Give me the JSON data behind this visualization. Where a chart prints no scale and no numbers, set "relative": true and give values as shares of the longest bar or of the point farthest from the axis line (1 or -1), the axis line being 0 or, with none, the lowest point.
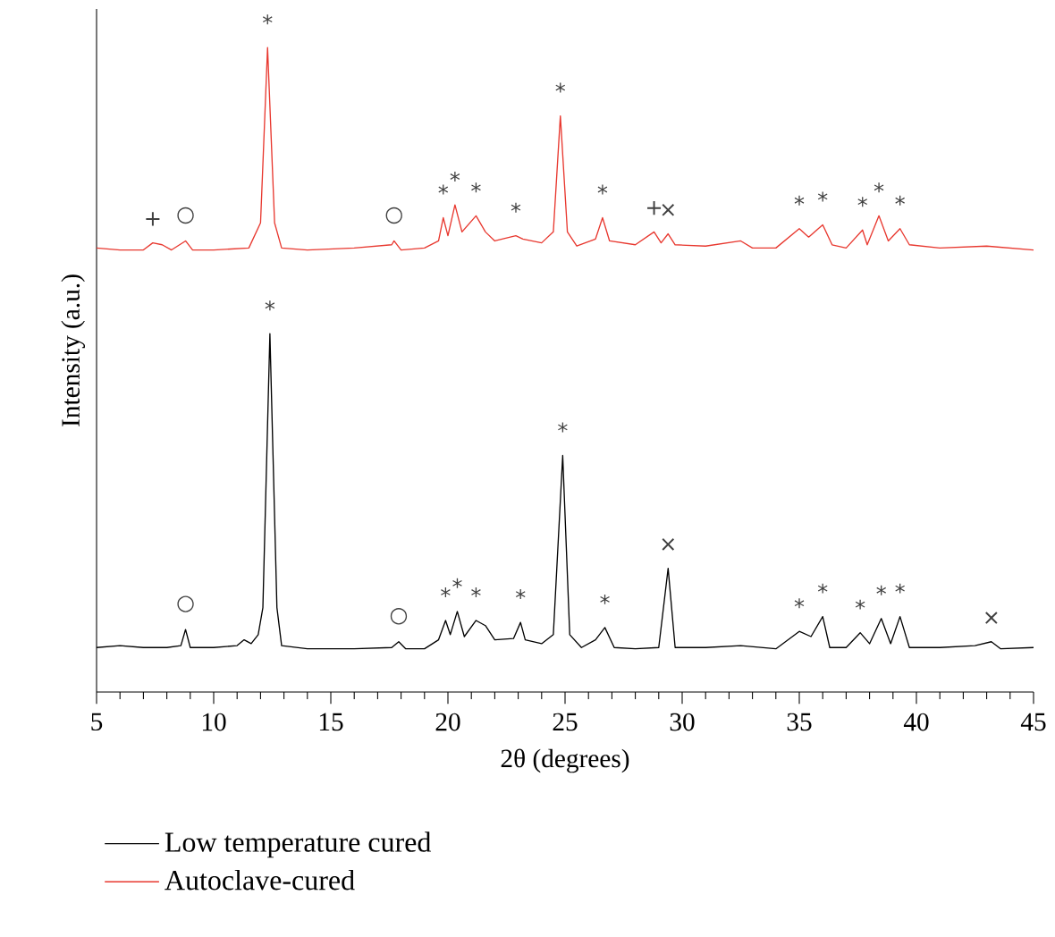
{
  "chart_data": {
    "type": "line",
    "relative": true,
    "xlabel": "2θ (degrees)",
    "ylabel": "Intensity (a.u.)",
    "xlim": [
      5,
      45
    ],
    "xticks": [
      5,
      10,
      15,
      20,
      25,
      30,
      35,
      40,
      45
    ],
    "legend": "bottom",
    "grid": false,
    "marker": "none",
    "line_style": "solid",
    "series": [
      {
        "name": "Low temperature cured",
        "color": "#000000",
        "x": [
          5,
          6,
          7,
          8,
          8.6,
          8.8,
          9,
          10,
          11,
          11.3,
          11.6,
          11.9,
          12.1,
          12.4,
          12.7,
          12.9,
          14,
          16,
          17.6,
          17.9,
          18.2,
          19,
          19.6,
          19.9,
          20.1,
          20.4,
          20.7,
          21.2,
          21.6,
          22,
          22.8,
          23.1,
          23.3,
          24,
          24.5,
          24.9,
          25.2,
          25.7,
          26.3,
          26.7,
          27.1,
          28,
          29,
          29.4,
          29.7,
          31,
          32.5,
          34,
          35,
          35.5,
          36,
          36.3,
          37,
          37.6,
          38,
          38.5,
          38.9,
          39.3,
          39.7,
          41,
          42.5,
          43.2,
          43.6,
          45
        ],
        "values": [
          0.069,
          0.072,
          0.069,
          0.069,
          0.072,
          0.097,
          0.069,
          0.069,
          0.072,
          0.081,
          0.075,
          0.089,
          0.131,
          0.556,
          0.131,
          0.072,
          0.067,
          0.067,
          0.069,
          0.078,
          0.067,
          0.067,
          0.081,
          0.111,
          0.089,
          0.125,
          0.086,
          0.111,
          0.103,
          0.081,
          0.083,
          0.108,
          0.081,
          0.075,
          0.089,
          0.367,
          0.089,
          0.069,
          0.081,
          0.1,
          0.069,
          0.067,
          0.069,
          0.192,
          0.069,
          0.069,
          0.072,
          0.067,
          0.094,
          0.086,
          0.117,
          0.069,
          0.069,
          0.092,
          0.075,
          0.114,
          0.075,
          0.117,
          0.069,
          0.069,
          0.072,
          0.078,
          0.067,
          0.069
        ]
      },
      {
        "name": "Autoclave-cured",
        "color": "#e8382f",
        "x": [
          5,
          6,
          7,
          7.4,
          7.8,
          8.2,
          8.8,
          9.1,
          10,
          11.5,
          12,
          12.3,
          12.6,
          12.9,
          14,
          16,
          17.6,
          17.7,
          18,
          19,
          19.6,
          19.8,
          20,
          20.3,
          20.6,
          21.2,
          21.6,
          22,
          22.9,
          23.2,
          24,
          24.5,
          24.8,
          25.1,
          25.5,
          26.3,
          26.6,
          26.9,
          28,
          28.8,
          29.1,
          29.4,
          29.7,
          31,
          32.5,
          33,
          34,
          35,
          35.4,
          36,
          36.4,
          37,
          37.7,
          37.9,
          38.4,
          38.8,
          39.3,
          39.7,
          41,
          43,
          45
        ],
        "values": [
          0.689,
          0.686,
          0.686,
          0.697,
          0.694,
          0.686,
          0.7,
          0.686,
          0.686,
          0.689,
          0.728,
          1.0,
          0.728,
          0.689,
          0.686,
          0.689,
          0.694,
          0.7,
          0.686,
          0.689,
          0.7,
          0.736,
          0.708,
          0.756,
          0.714,
          0.739,
          0.714,
          0.7,
          0.708,
          0.703,
          0.697,
          0.714,
          0.894,
          0.714,
          0.692,
          0.703,
          0.736,
          0.7,
          0.694,
          0.714,
          0.697,
          0.711,
          0.694,
          0.692,
          0.7,
          0.689,
          0.689,
          0.719,
          0.706,
          0.725,
          0.694,
          0.689,
          0.717,
          0.694,
          0.739,
          0.7,
          0.719,
          0.694,
          0.689,
          0.692,
          0.686
        ]
      }
    ],
    "annotations": [
      {
        "text": "+",
        "x": 7.4,
        "y": 0.697
      },
      {
        "text": "○",
        "x": 8.8,
        "y": 0.7
      },
      {
        "text": "*",
        "x": 12.3,
        "y": 1.0
      },
      {
        "text": "○",
        "x": 17.7,
        "y": 0.7
      },
      {
        "text": "*",
        "x": 19.8,
        "y": 0.736
      },
      {
        "text": "*",
        "x": 20.3,
        "y": 0.756
      },
      {
        "text": "*",
        "x": 21.2,
        "y": 0.739
      },
      {
        "text": "*",
        "x": 22.9,
        "y": 0.708
      },
      {
        "text": "*",
        "x": 24.8,
        "y": 0.894
      },
      {
        "text": "*",
        "x": 26.6,
        "y": 0.736
      },
      {
        "text": "+",
        "x": 28.8,
        "y": 0.714
      },
      {
        "text": "×",
        "x": 29.4,
        "y": 0.711
      },
      {
        "text": "*",
        "x": 35,
        "y": 0.719
      },
      {
        "text": "*",
        "x": 36,
        "y": 0.725
      },
      {
        "text": "*",
        "x": 37.7,
        "y": 0.717
      },
      {
        "text": "*",
        "x": 38.4,
        "y": 0.739
      },
      {
        "text": "*",
        "x": 39.3,
        "y": 0.719
      },
      {
        "text": "○",
        "x": 8.8,
        "y": 0.097
      },
      {
        "text": "*",
        "x": 12.4,
        "y": 0.556
      },
      {
        "text": "○",
        "x": 17.9,
        "y": 0.078
      },
      {
        "text": "*",
        "x": 19.9,
        "y": 0.111
      },
      {
        "text": "*",
        "x": 20.4,
        "y": 0.125
      },
      {
        "text": "*",
        "x": 21.2,
        "y": 0.111
      },
      {
        "text": "*",
        "x": 23.1,
        "y": 0.108
      },
      {
        "text": "*",
        "x": 24.9,
        "y": 0.367
      },
      {
        "text": "*",
        "x": 26.7,
        "y": 0.1
      },
      {
        "text": "×",
        "x": 29.4,
        "y": 0.192
      },
      {
        "text": "*",
        "x": 35,
        "y": 0.094
      },
      {
        "text": "*",
        "x": 36,
        "y": 0.117
      },
      {
        "text": "*",
        "x": 37.6,
        "y": 0.092
      },
      {
        "text": "*",
        "x": 38.5,
        "y": 0.114
      },
      {
        "text": "*",
        "x": 39.3,
        "y": 0.117
      },
      {
        "text": "×",
        "x": 43.2,
        "y": 0.078
      }
    ]
  }
}
